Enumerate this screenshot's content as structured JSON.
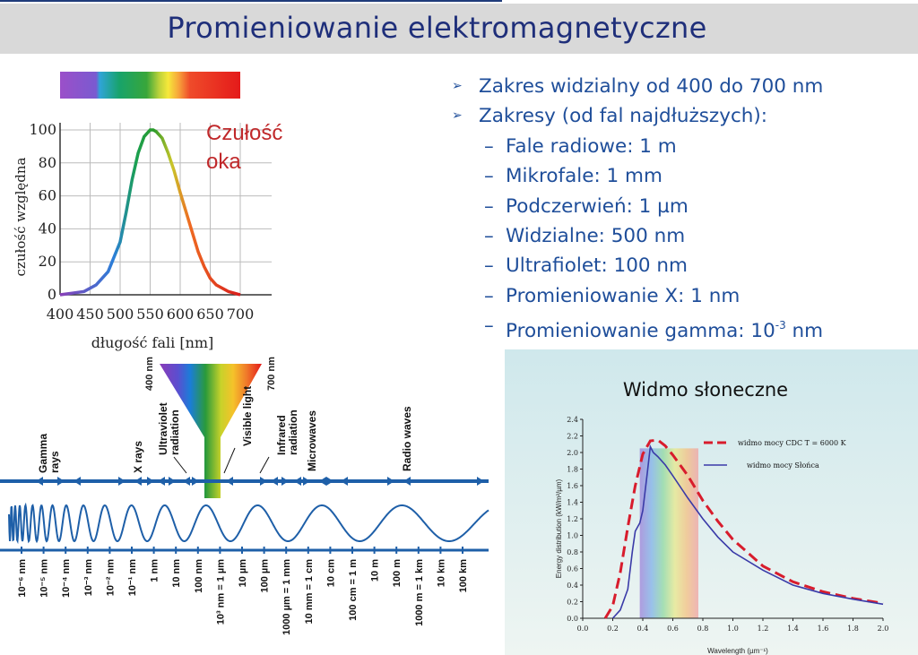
{
  "title": "Promieniowanie elektromagnetyczne",
  "bullets": [
    {
      "text": "Zakres widzialny od 400 do 700 nm",
      "level": 1
    },
    {
      "text": "Zakresy (od fal najdłuższych):",
      "level": 1
    },
    {
      "text": "Fale radiowe: 1 m",
      "level": 2
    },
    {
      "text": "Mikrofale: 1 mm",
      "level": 2
    },
    {
      "text": "Podczerwień: 1 µm",
      "level": 2
    },
    {
      "text": "Widzialne: 500 nm",
      "level": 2
    },
    {
      "text": "Ultrafiolet: 100 nm",
      "level": 2
    },
    {
      "text": "Promieniowanie X: 1 nm",
      "level": 2
    }
  ],
  "gamma_bullet": {
    "prefix": "Promieniowanie gamma: 10",
    "exp": "-3",
    "suffix": " nm"
  },
  "chart_data": [
    {
      "type": "line",
      "annotation": "Czułość oka",
      "annotation_lines": [
        "Czułość",
        "oka"
      ],
      "xlabel": "długość fali [nm]",
      "ylabel": "czułość względna",
      "xlim": [
        400,
        700
      ],
      "ylim": [
        0,
        100
      ],
      "xticks": [
        "400",
        "450",
        "500",
        "550",
        "600",
        "650",
        "700"
      ],
      "yticks": [
        "0",
        "20",
        "40",
        "60",
        "80",
        "100"
      ],
      "x": [
        400,
        420,
        440,
        460,
        480,
        500,
        510,
        520,
        530,
        540,
        550,
        555,
        560,
        570,
        580,
        590,
        600,
        610,
        620,
        630,
        640,
        650,
        660,
        680,
        700
      ],
      "y": [
        0,
        1,
        2,
        6,
        14,
        32,
        50,
        70,
        86,
        96,
        100,
        100,
        99,
        95,
        86,
        75,
        62,
        50,
        38,
        26,
        17,
        10,
        6,
        2,
        0
      ]
    },
    {
      "type": "line",
      "title": "Widmo słoneczne",
      "xlabel": "Wavelength (µm⁻¹)",
      "ylabel": "Energy distribution (kW/m²/µm)",
      "xlim": [
        0,
        2.0
      ],
      "ylim": [
        0,
        2.4
      ],
      "xticks": [
        "0.0",
        "0.2",
        "0.4",
        "0.6",
        "0.8",
        "1.0",
        "1.2",
        "1.4",
        "1.6",
        "1.8",
        "2.0"
      ],
      "yticks": [
        "0.0",
        "0.2",
        "0.4",
        "0.6",
        "0.8",
        "1.0",
        "1.2",
        "1.4",
        "1.6",
        "1.8",
        "2.0",
        "2.2",
        "2.4"
      ],
      "legend": [
        "widmo mocy CDC   T = 6000 K",
        "widmo mocy Słońca"
      ],
      "series": [
        {
          "name": "widmo mocy CDC   T = 6000 K",
          "x": [
            0.15,
            0.2,
            0.25,
            0.3,
            0.35,
            0.4,
            0.45,
            0.5,
            0.55,
            0.6,
            0.7,
            0.8,
            0.9,
            1.0,
            1.2,
            1.4,
            1.6,
            1.8,
            2.0
          ],
          "y": [
            0,
            0.15,
            0.55,
            1.1,
            1.6,
            1.98,
            2.14,
            2.15,
            2.08,
            1.97,
            1.72,
            1.42,
            1.17,
            0.95,
            0.63,
            0.44,
            0.32,
            0.24,
            0.18
          ]
        },
        {
          "name": "widmo mocy Słońca",
          "x": [
            0.2,
            0.25,
            0.3,
            0.33,
            0.35,
            0.38,
            0.4,
            0.43,
            0.45,
            0.47,
            0.5,
            0.55,
            0.6,
            0.7,
            0.8,
            0.9,
            1.0,
            1.2,
            1.4,
            1.6,
            1.8,
            2.0
          ],
          "y": [
            0.0,
            0.1,
            0.35,
            0.8,
            1.05,
            1.15,
            1.3,
            1.75,
            2.07,
            2.0,
            1.95,
            1.85,
            1.72,
            1.45,
            1.2,
            0.98,
            0.8,
            0.58,
            0.4,
            0.3,
            0.23,
            0.17
          ]
        }
      ]
    }
  ],
  "spectrum": {
    "band_labels": [
      "Gamma rays",
      "X rays",
      "Ultraviolet radiation",
      "Visible light",
      "Infrared radiation",
      "Microwaves",
      "Radio waves"
    ],
    "funnel_labels": [
      "400 nm",
      "700 nm"
    ],
    "scale_labels": [
      "10⁻⁶ nm",
      "10⁻⁵ nm",
      "10⁻⁴ nm",
      "10⁻³ nm",
      "10⁻² nm",
      "10⁻¹ nm",
      "1 nm",
      "10 nm",
      "100 nm",
      "10³ nm = 1 µm",
      "10 µm",
      "100 µm",
      "1000 µm = 1 mm",
      "10 mm = 1 cm",
      "10 cm",
      "100 cm = 1 m",
      "10 m",
      "100 m",
      "1000 m = 1 km",
      "10 km",
      "100 km"
    ]
  }
}
